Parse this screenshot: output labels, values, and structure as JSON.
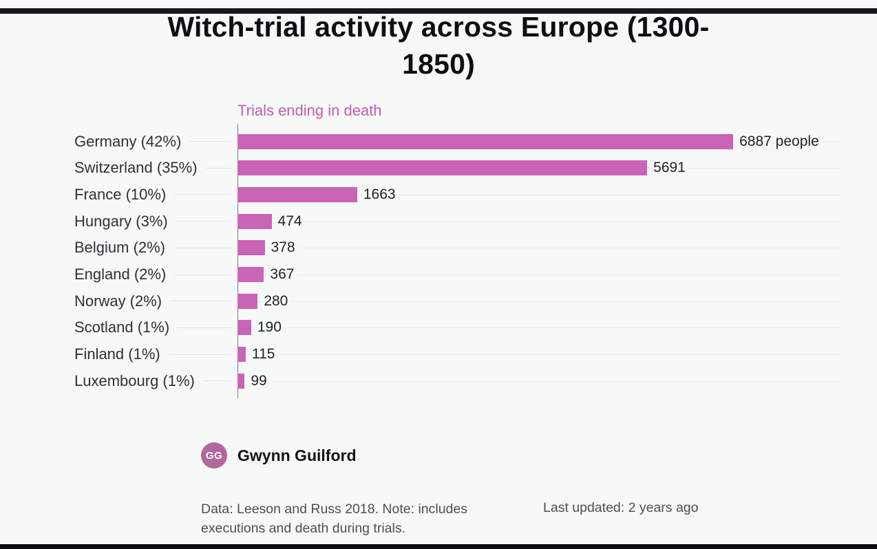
{
  "title": {
    "line1": "Witch-trial activity across Europe (1300-",
    "line2": "1850)"
  },
  "chart_data": {
    "type": "bar",
    "orientation": "horizontal",
    "title": "Witch-trial activity across Europe (1300-1850)",
    "series_label": "Trials ending in death",
    "categories": [
      "Germany (42%)",
      "Switzerland (35%)",
      "France (10%)",
      "Hungary (3%)",
      "Belgium (2%)",
      "England (2%)",
      "Norway (2%)",
      "Scotland (1%)",
      "Finland (1%)",
      "Luxembourg (1%)"
    ],
    "values": [
      6887,
      5691,
      1663,
      474,
      378,
      367,
      280,
      190,
      115,
      99
    ],
    "value_labels": [
      "6887 people",
      "5691",
      "1663",
      "474",
      "378",
      "367",
      "280",
      "190",
      "115",
      "99"
    ],
    "bar_color": "#c964b6",
    "accent_color": "#c45cb3",
    "legend_position": "none",
    "grid": "row-lines"
  },
  "author": {
    "initials": "GG",
    "name": "Gwynn Guilford",
    "avatar_color": "#b2679d"
  },
  "footer": {
    "note": "Data: Leeson and Russ 2018. Note: includes executions and death during trials.",
    "updated": "Last updated: 2 years ago"
  }
}
